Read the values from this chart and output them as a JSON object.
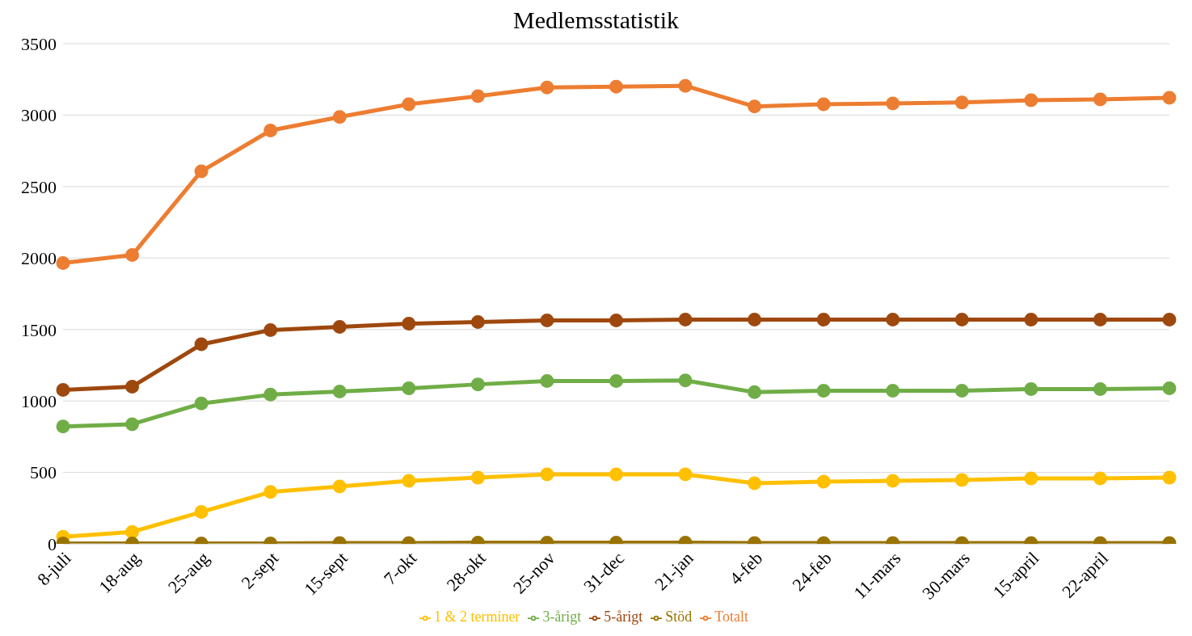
{
  "chart_data": {
    "type": "line",
    "title": "Medlemsstatistik",
    "categories": [
      "8-juli",
      "18-aug",
      "25-aug",
      "2-sept",
      "15-sept",
      "7-okt",
      "28-okt",
      "25-nov",
      "31-dec",
      "21-jan",
      "4-feb",
      "24-feb",
      "11-mars",
      "30-mars",
      "15-april",
      "22-april",
      null
    ],
    "series": [
      {
        "name": "Totalt",
        "color": "#ed7d31",
        "values": [
          1965,
          2021,
          2607,
          2892,
          2987,
          3076,
          3132,
          3193,
          3199,
          3205,
          3060,
          3076,
          3082,
          3088,
          3104,
          3110,
          3121
        ]
      },
      {
        "name": "1 & 2 terminer",
        "color": "#ffc000",
        "values": [
          50,
          84,
          223,
          363,
          402,
          441,
          463,
          486,
          486,
          486,
          424,
          435,
          441,
          447,
          458,
          458,
          463
        ]
      },
      {
        "name": "3-årigt",
        "color": "#70ad47",
        "values": [
          821,
          837,
          982,
          1044,
          1066,
          1088,
          1116,
          1139,
          1139,
          1144,
          1061,
          1072,
          1072,
          1072,
          1083,
          1083,
          1088
        ]
      },
      {
        "name": "5-årigt",
        "color": "#9e480e",
        "values": [
          1077,
          1100,
          1396,
          1496,
          1518,
          1541,
          1552,
          1563,
          1563,
          1569,
          1569,
          1569,
          1569,
          1569,
          1569,
          1569,
          1569
        ]
      },
      {
        "name": "Stöd",
        "color": "#997300",
        "values": [
          3,
          3,
          3,
          3,
          5,
          5,
          8,
          8,
          8,
          8,
          5,
          5,
          5,
          5,
          5,
          5,
          5
        ]
      }
    ],
    "ylim": [
      0,
      3500
    ],
    "yticks": [
      0,
      500,
      1000,
      1500,
      2000,
      2500,
      3000,
      3500
    ],
    "grid": "y",
    "legend": "bottom",
    "marker": "circle",
    "line_style": "solid"
  }
}
